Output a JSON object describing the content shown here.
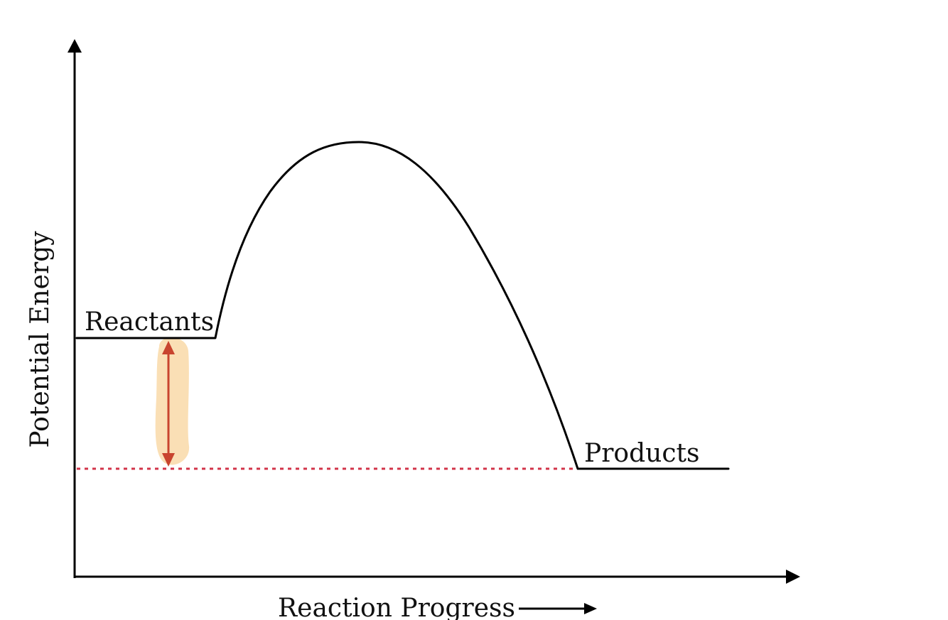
{
  "labels": {
    "reactants": "Reactants",
    "products": "Products",
    "y_axis": "Potential Energy",
    "x_axis": "Reaction Progress"
  },
  "colors": {
    "curve": "#000000",
    "dotted_level": "#d2344a",
    "energy_arrow": "#c8442e",
    "highlight": "#f9d9a8"
  }
}
